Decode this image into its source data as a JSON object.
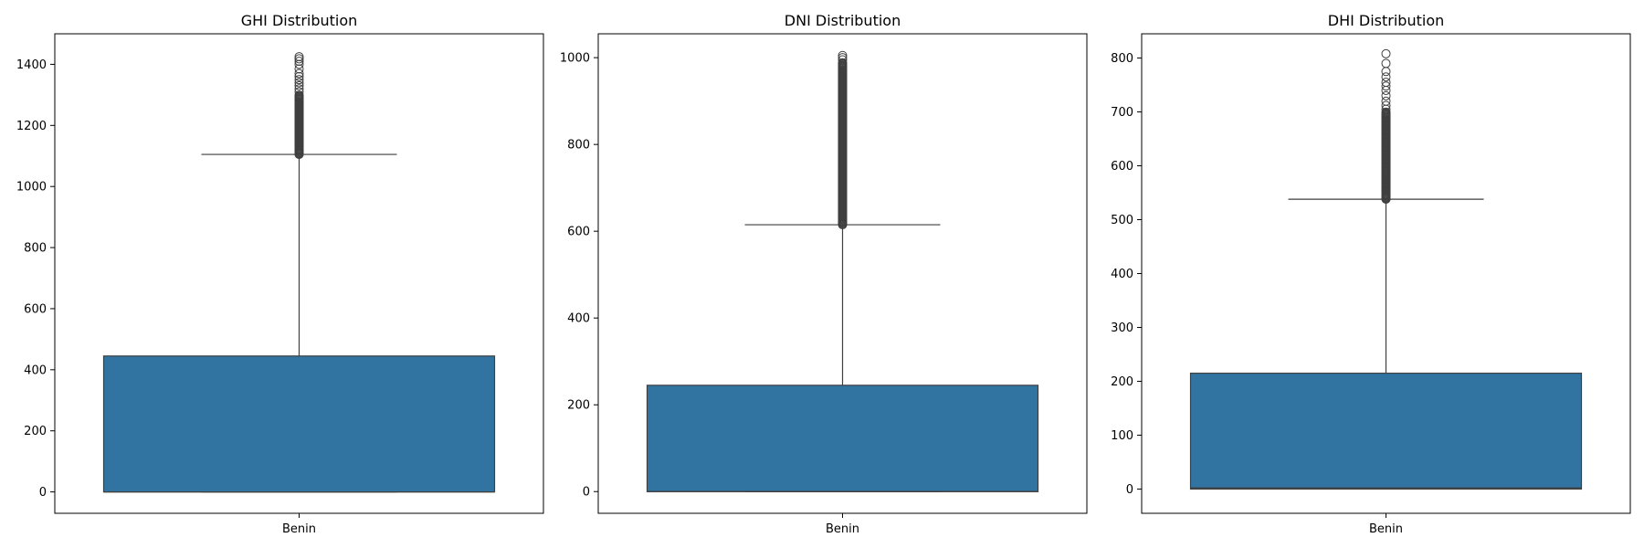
{
  "chart_data": [
    {
      "type": "box",
      "title": "GHI Distribution",
      "category": "Benin",
      "ylim": [
        -70,
        1500
      ],
      "yticks": [
        0,
        200,
        400,
        600,
        800,
        1000,
        1200,
        1400
      ],
      "box": {
        "q1": 0,
        "median": 0,
        "q3": 445,
        "whisker_low": 0,
        "whisker_high": 1105
      },
      "outliers_range": [
        1105,
        1425
      ],
      "outliers_dense_to": 1300,
      "outliers_sparse": [
        1310,
        1320,
        1330,
        1340,
        1350,
        1360,
        1370,
        1385,
        1400,
        1410,
        1418,
        1425
      ]
    },
    {
      "type": "box",
      "title": "DNI Distribution",
      "category": "Benin",
      "ylim": [
        -50,
        1055
      ],
      "yticks": [
        0,
        200,
        400,
        600,
        800,
        1000
      ],
      "box": {
        "q1": 0,
        "median": 0,
        "q3": 245,
        "whisker_low": 0,
        "whisker_high": 615
      },
      "outliers_range": [
        615,
        1005
      ],
      "outliers_dense_to": 990,
      "outliers_sparse": [
        995,
        1000,
        1005
      ]
    },
    {
      "type": "box",
      "title": "DHI Distribution",
      "category": "Benin",
      "ylim": [
        -45,
        845
      ],
      "yticks": [
        0,
        100,
        200,
        300,
        400,
        500,
        600,
        700,
        800
      ],
      "box": {
        "q1": 0,
        "median": 2,
        "q3": 215,
        "whisker_low": 0,
        "whisker_high": 538
      },
      "outliers_range": [
        538,
        808
      ],
      "outliers_dense_to": 700,
      "outliers_sparse": [
        705,
        712,
        720,
        730,
        740,
        748,
        755,
        765,
        775,
        790,
        808
      ]
    }
  ],
  "colors": {
    "box_fill": "#3274a1",
    "line": "#3f3f3f",
    "axis": "#000000"
  }
}
